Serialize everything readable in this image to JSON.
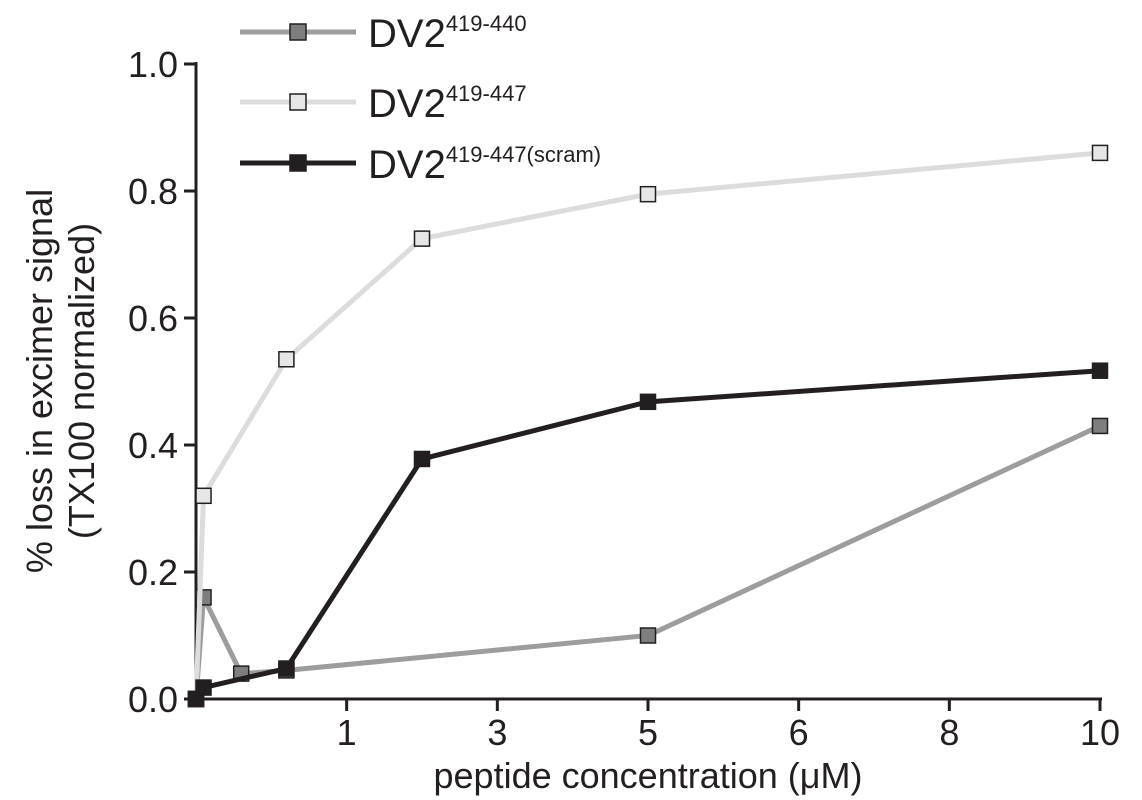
{
  "chart_data": {
    "type": "line",
    "xlabel": "peptide concentration (μM)",
    "ylabel_line1": "% loss in excimer signal",
    "ylabel_line2": "(TX100 normalized)",
    "ylim": [
      0,
      1.0
    ],
    "x_ticks": [
      {
        "value": 1,
        "label": "1"
      },
      {
        "value": 2,
        "label": "3"
      },
      {
        "value": 3,
        "label": "5"
      },
      {
        "value": 4,
        "label": "6"
      },
      {
        "value": 5,
        "label": "8"
      },
      {
        "value": 6,
        "label": "10"
      }
    ],
    "y_ticks": [
      {
        "value": 0.0,
        "label": "0.0"
      },
      {
        "value": 0.2,
        "label": "0.2"
      },
      {
        "value": 0.4,
        "label": "0.4"
      },
      {
        "value": 0.6,
        "label": "0.6"
      },
      {
        "value": 0.8,
        "label": "0.8"
      },
      {
        "value": 1.0,
        "label": "1.0"
      }
    ],
    "legend_position": "top-left",
    "grid": false,
    "series": [
      {
        "name": "DV2",
        "superscript": "419-440",
        "color": "#9d9d9d",
        "marker_fill": "#7e7e7e",
        "x": [
          0,
          0.05,
          0.3,
          0.6,
          3,
          6
        ],
        "y": [
          0.0,
          0.16,
          0.04,
          0.045,
          0.1,
          0.43
        ]
      },
      {
        "name": "DV2",
        "superscript": "419-447",
        "color": "#dcdcdc",
        "marker_fill": "#e6e6e6",
        "x": [
          0,
          0.05,
          0.6,
          1.5,
          3,
          6
        ],
        "y": [
          0.0,
          0.32,
          0.535,
          0.725,
          0.795,
          0.86
        ]
      },
      {
        "name": "DV2",
        "superscript": "419-447(scram)",
        "color": "#231f20",
        "marker_fill": "#231f20",
        "x": [
          0,
          0.05,
          0.6,
          1.5,
          3,
          6
        ],
        "y": [
          0.0,
          0.018,
          0.048,
          0.378,
          0.468,
          0.517
        ]
      }
    ]
  }
}
